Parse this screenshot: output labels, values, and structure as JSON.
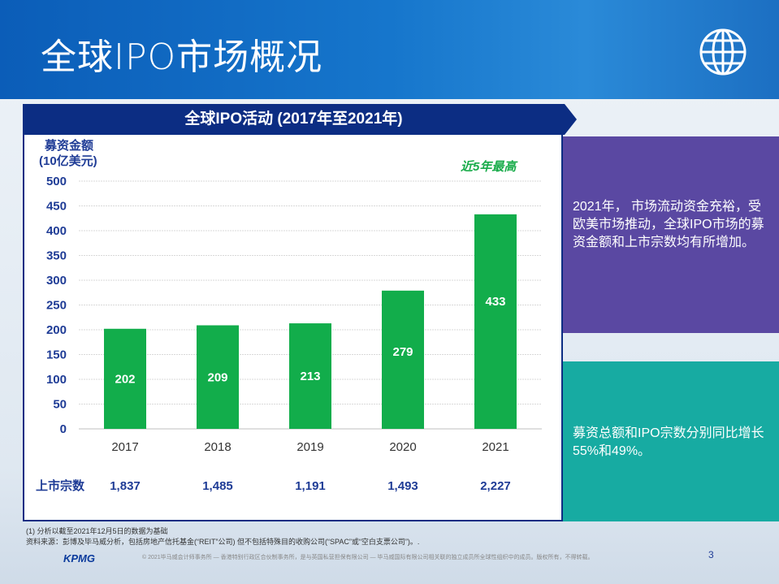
{
  "header": {
    "title": "全球IPO市场概况",
    "icon": "globe-icon"
  },
  "banner": {
    "title": "全球IPO活动 (2017年至2021年)"
  },
  "chart_data": {
    "type": "bar",
    "ylabel": "募资金额 (10亿美元)",
    "ylabel_line1": "募资金额",
    "ylabel_line2": "(10亿美元)",
    "categories": [
      "2017",
      "2018",
      "2019",
      "2020",
      "2021"
    ],
    "values": [
      202,
      209,
      213,
      279,
      433
    ],
    "data_labels": [
      "202",
      "209",
      "213",
      "279",
      "433"
    ],
    "ylim": [
      0,
      500
    ],
    "yticks": [
      "0",
      "50",
      "100",
      "150",
      "200",
      "250",
      "300",
      "350",
      "400",
      "450",
      "500"
    ],
    "grid": true,
    "bar_color": "#12ad4b",
    "annotation": "近5年最高",
    "counts_label": "上市宗数",
    "counts": [
      "1,837",
      "1,485",
      "1,191",
      "1,493",
      "2,227"
    ]
  },
  "panels": {
    "purple_text": "2021年，  市场流动资金充裕，受欧美市场推动，全球IPO市场的募资金额和上市宗数均有所增加。",
    "teal_text": "募资总额和IPO宗数分别同比增长55%和49%。"
  },
  "notes": {
    "note1": "(1) 分析以截至2021年12月5日的数据为基础",
    "source": "资料来源：彭博及毕马威分析，包括房地产信托基金(“REIT”公司) 但不包括特殊目的收购公司(“SPAC”或“空白支票公司”)。."
  },
  "footer": {
    "logo": "KPMG",
    "copyright": "© 2021毕马威会计师事务所 — 香港特别行政区合伙制事务所，是与英国私营担保有限公司 — 毕马威国际有限公司相关联的独立成员所全球性组织中的成员。版权所有，不得转载。",
    "page_number": "3"
  }
}
